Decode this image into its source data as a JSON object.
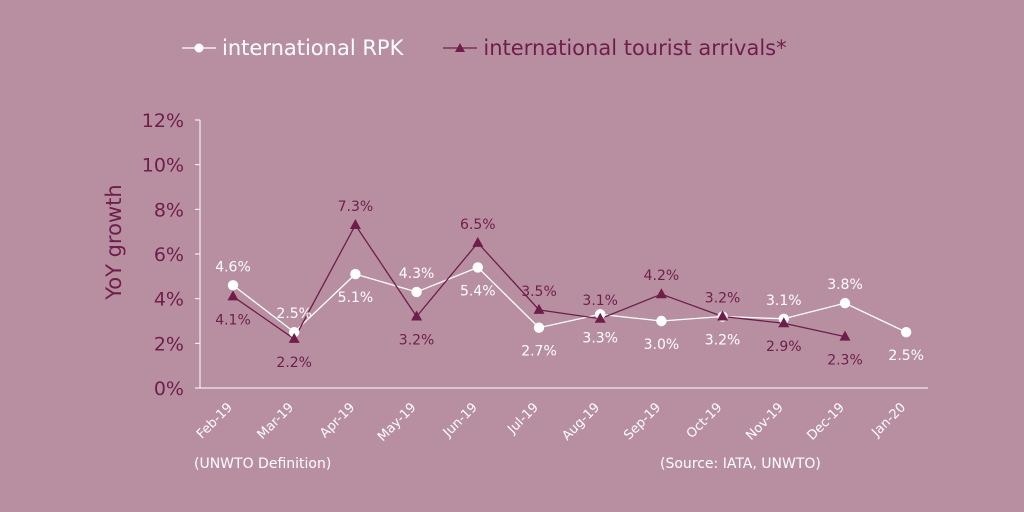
{
  "legend": {
    "rpk": "international RPK",
    "tourist": "international tourist arrivals*"
  },
  "colors": {
    "background": "#b88fa0",
    "rpk": "#ffffff",
    "tourist": "#6e1e4b",
    "axis_text": "#6e1e4b",
    "category_text": "#ffffff"
  },
  "footnote_left": "(UNWTO Definition)",
  "footnote_right": "(Source: IATA, UNWTO)",
  "chart_data": {
    "type": "line",
    "ylabel": "YoY growth",
    "ylim": [
      0,
      12
    ],
    "yticks": [
      "0%",
      "2%",
      "4%",
      "6%",
      "8%",
      "10%",
      "12%"
    ],
    "categories": [
      "Feb-19",
      "Mar-19",
      "Apr-19",
      "May-19",
      "Jun-19",
      "Jul-19",
      "Aug-19",
      "Sep-19",
      "Oct-19",
      "Nov-19",
      "Dec-19",
      "Jan-20"
    ],
    "grid": false,
    "legend_position": "top",
    "series": [
      {
        "name": "international RPK",
        "marker": "circle",
        "values": [
          4.6,
          2.5,
          5.1,
          4.3,
          5.4,
          2.7,
          3.3,
          3.0,
          3.2,
          3.1,
          3.8,
          2.5
        ],
        "labels": [
          "4.6%",
          "2.5%",
          "5.1%",
          "4.3%",
          "5.4%",
          "2.7%",
          "3.3%",
          "3.0%",
          "3.2%",
          "3.1%",
          "3.8%",
          "2.5%"
        ]
      },
      {
        "name": "international tourist arrivals*",
        "marker": "triangle",
        "values": [
          4.1,
          2.2,
          7.3,
          3.2,
          6.5,
          3.5,
          3.1,
          4.2,
          3.2,
          2.9,
          2.3,
          null
        ],
        "labels": [
          "4.1%",
          "2.2%",
          "7.3%",
          "3.2%",
          "6.5%",
          "3.5%",
          "3.1%",
          "4.2%",
          "3.2%",
          "2.9%",
          "2.3%",
          ""
        ]
      }
    ]
  }
}
